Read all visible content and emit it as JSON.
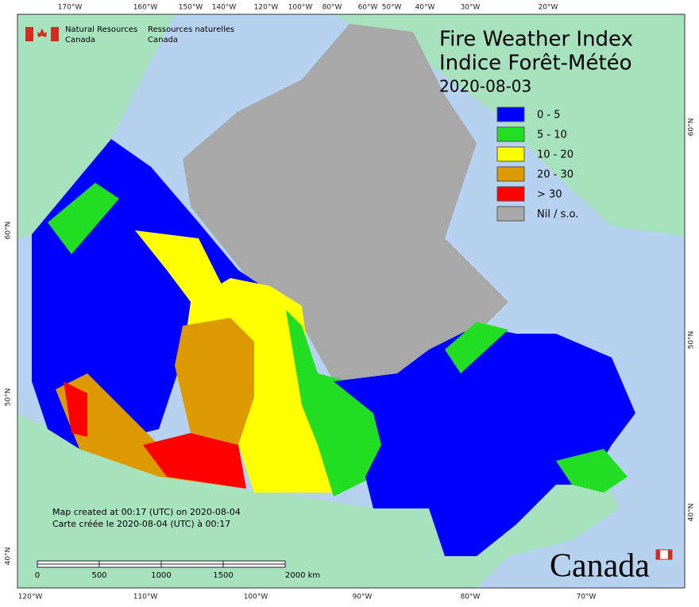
{
  "header": {
    "agency_en": [
      "Natural Resources",
      "Canada"
    ],
    "agency_fr": [
      "Ressources naturelles",
      "Canada"
    ]
  },
  "title": {
    "lines": [
      "Fire Weather Index",
      "Indice Forêt-Météo"
    ],
    "date": "2020-08-03"
  },
  "legend": [
    {
      "label": "0 - 5",
      "color": "#0000ff"
    },
    {
      "label": "5 - 10",
      "color": "#22dd22"
    },
    {
      "label": "10 - 20",
      "color": "#ffff00"
    },
    {
      "label": "20 - 30",
      "color": "#dd9900"
    },
    {
      "label": "> 30",
      "color": "#ff0000"
    },
    {
      "label": "Nil / s.o.",
      "color": "#a8a8a8"
    }
  ],
  "graticule": {
    "top": [
      "170°W",
      "160°W",
      "150°W",
      "140°W",
      "120°W",
      "100°W",
      "80°W",
      "60°W",
      "50°W",
      "40°W",
      "30°W",
      "20°W"
    ],
    "bottom": [
      "120°W",
      "110°W",
      "100°W",
      "90°W",
      "80°W",
      "70°W"
    ],
    "left": [
      "60°N",
      "50°N",
      "40°N"
    ],
    "right": [
      "60°N",
      "50°N",
      "40°N"
    ]
  },
  "footnote": [
    "Map created at 00:17 (UTC) on 2020-08-04",
    "Carte créée le 2020-08-04 (UTC) à 00:17"
  ],
  "scale_bar": [
    "0",
    "500",
    "1000",
    "1500",
    "2000 km"
  ],
  "wordmark": "Canada"
}
